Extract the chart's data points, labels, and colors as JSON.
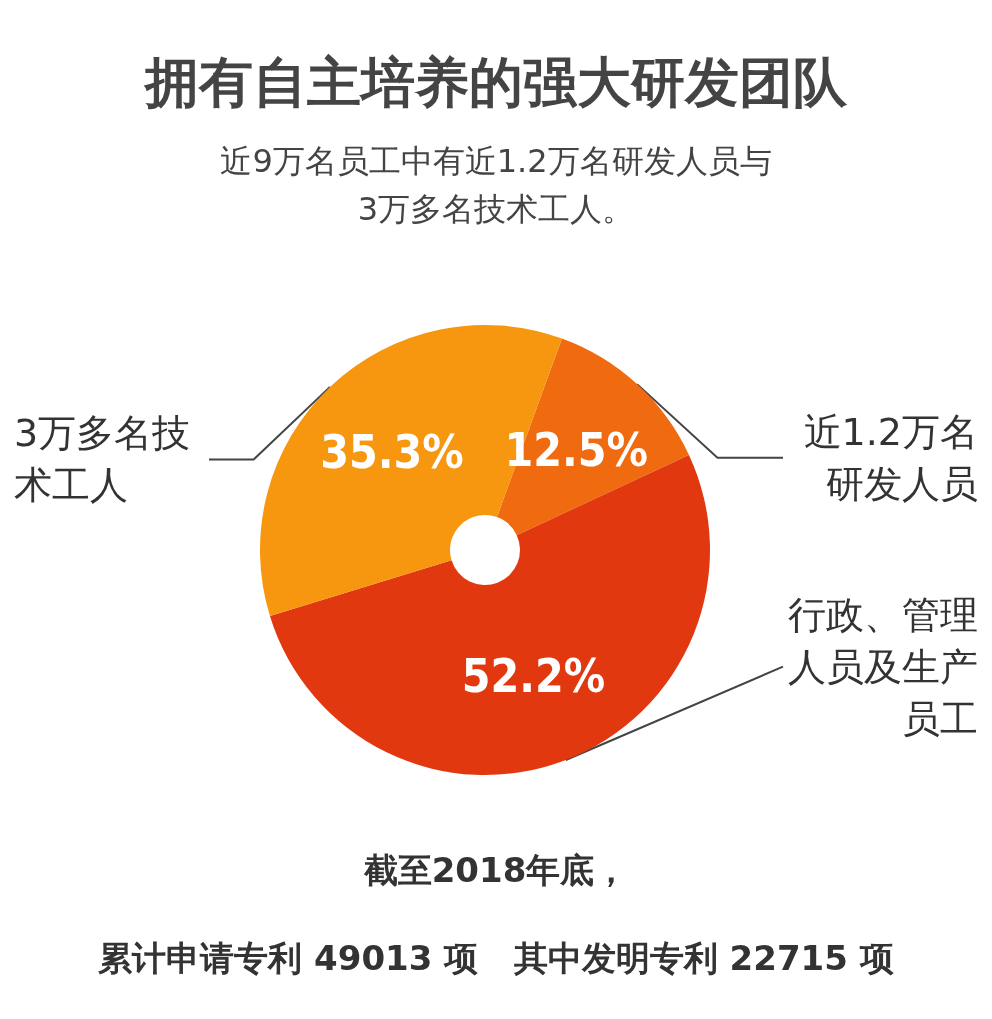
{
  "chart_data": {
    "type": "donut",
    "title": "拥有自主培养的强大研发团队",
    "subtitle": "近9万名员工中有近1.2万名研发人员与3万多名技术工人。",
    "categories": [
      "近1.2万名研发人员",
      "行政、管理人员及生产员工",
      "3万多名技术工人"
    ],
    "values": [
      12.5,
      52.2,
      35.3
    ],
    "value_labels": [
      "12.5%",
      "52.2%",
      "35.3%"
    ],
    "colors": [
      "#f06a10",
      "#e2380f",
      "#f7960f"
    ],
    "annotations": [
      "截至2018年底，",
      "累计申请专利 49013 项   其中发明专利 22715 项"
    ]
  }
}
